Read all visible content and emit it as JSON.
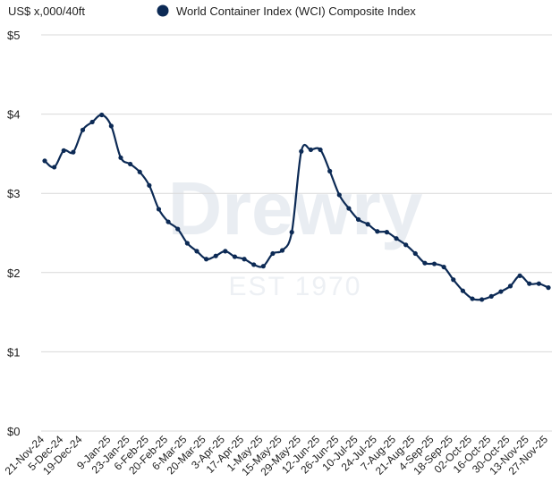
{
  "chart_data": {
    "type": "line",
    "ylabel": "US$ x,000/40ft",
    "ylim": [
      0,
      5
    ],
    "yticks": [
      "$0",
      "$1",
      "$2",
      "$3",
      "$4",
      "$5"
    ],
    "ytick_values": [
      0,
      1,
      2,
      3,
      4,
      5
    ],
    "grid": true,
    "legend_position": "top",
    "watermark": {
      "name": "Drewry",
      "tagline": "EST 1970"
    },
    "xtick_labels": [
      "21-Nov-24",
      "5-Dec-24",
      "19-Dec-24",
      "9-Jan-25",
      "23-Jan-25",
      "6-Feb-25",
      "20-Feb-25",
      "6-Mar-25",
      "20-Mar-25",
      "3-Apr-25",
      "17-Apr-25",
      "1-May-25",
      "15-May-25",
      "29-May-25",
      "12-Jun-25",
      "26-Jun-25",
      "10-Jul-25",
      "24-Jul-25",
      "7-Aug-25",
      "21-Aug-25",
      "4-Sep-25",
      "18-Sep-25",
      "02-Oct-25",
      "16-Oct-25",
      "30-Oct-25",
      "13-Nov-25",
      "27-Nov-25"
    ],
    "x": [
      "21-Nov-24",
      "28-Nov-24",
      "5-Dec-24",
      "12-Dec-24",
      "19-Dec-24",
      "26-Dec-24",
      "2-Jan-25",
      "9-Jan-25",
      "16-Jan-25",
      "23-Jan-25",
      "30-Jan-25",
      "6-Feb-25",
      "13-Feb-25",
      "20-Feb-25",
      "27-Feb-25",
      "6-Mar-25",
      "13-Mar-25",
      "20-Mar-25",
      "27-Mar-25",
      "3-Apr-25",
      "10-Apr-25",
      "17-Apr-25",
      "24-Apr-25",
      "1-May-25",
      "8-May-25",
      "15-May-25",
      "22-May-25",
      "29-May-25",
      "5-Jun-25",
      "12-Jun-25",
      "19-Jun-25",
      "26-Jun-25",
      "3-Jul-25",
      "10-Jul-25",
      "17-Jul-25",
      "24-Jul-25",
      "31-Jul-25",
      "7-Aug-25",
      "14-Aug-25",
      "21-Aug-25",
      "28-Aug-25",
      "4-Sep-25",
      "11-Sep-25",
      "18-Sep-25",
      "25-Sep-25",
      "02-Oct-25",
      "09-Oct-25",
      "16-Oct-25",
      "23-Oct-25",
      "30-Oct-25",
      "6-Nov-25",
      "13-Nov-25",
      "20-Nov-25",
      "27-Nov-25"
    ],
    "series": [
      {
        "name": "World Container Index (WCI) Composite Index",
        "color": "#0c2a55",
        "values": [
          3.41,
          3.33,
          3.54,
          3.52,
          3.8,
          3.9,
          3.99,
          3.85,
          3.45,
          3.37,
          3.27,
          3.1,
          2.8,
          2.64,
          2.55,
          2.37,
          2.27,
          2.17,
          2.21,
          2.27,
          2.2,
          2.17,
          2.1,
          2.08,
          2.24,
          2.28,
          2.51,
          3.53,
          3.55,
          3.55,
          3.28,
          2.98,
          2.81,
          2.67,
          2.61,
          2.52,
          2.51,
          2.43,
          2.35,
          2.24,
          2.12,
          2.11,
          2.07,
          1.91,
          1.77,
          1.67,
          1.66,
          1.7,
          1.76,
          1.83,
          1.96,
          1.86,
          1.86,
          1.81
        ]
      }
    ]
  }
}
